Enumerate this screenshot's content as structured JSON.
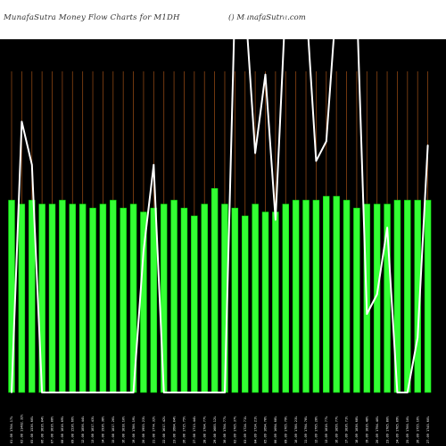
{
  "header": {
    "title": "MunafaSutra  Money Flow  Charts for M1DH",
    "watermark": "() MunafaSutra.com"
  },
  "colors": {
    "background": "#000000",
    "bar": "#33ff33",
    "bar_edge": "#00cc00",
    "line": "#ffffff",
    "gridline": "#8b4513",
    "header_bg": "#ffffff"
  },
  "chart_data": {
    "type": "bar",
    "title": "MunafaSutra  Money Flow  Charts for M1DH",
    "ylim": [
      0,
      100
    ],
    "grid": "vertical",
    "categories": [
      "01.08 1704.17%",
      "02.08 11482.32%",
      "05.08 1536.60%",
      "06.08 1816.04%",
      "07.08 1816.08%",
      "08.08 1816.69%",
      "09.08 1536.66%",
      "12.08 1856.44%",
      "13.08 1817.43%",
      "14.08 1936.38%",
      "15.08 1817.26%",
      "16.08 1818.10%",
      "19.08 1786.19%",
      "20.08 1955.23%",
      "21.08 1774.32%",
      "22.08 1617.42%",
      "23.08 1684.04%",
      "26.08 1715.75%",
      "27.08 1713.44%",
      "28.08 1704.77%",
      "29.08 1685.12%",
      "30.08 1704.77%",
      "02.09 1705.37%",
      "03.09 1724.71%",
      "04.09 1724.21%",
      "05.09 1694.78%",
      "06.09 1694.08%",
      "09.09 1765.79%",
      "10.09 1786.23%",
      "11.09 1794.78%",
      "12.09 1795.28%",
      "13.09 1816.77%",
      "16.09 1856.77%",
      "17.09 1836.71%",
      "18.09 1836.68%",
      "19.09 1816.48%",
      "20.09 1794.40%",
      "23.09 1785.80%",
      "24.09 1785.09%",
      "25.09 1766.10%",
      "26.09 1755.16%",
      "27.09 1745.60%"
    ],
    "series": [
      {
        "type": "bar",
        "values": [
          49,
          48,
          49,
          48,
          48,
          49,
          48,
          48,
          47,
          48,
          49,
          47,
          48,
          46,
          47,
          48,
          49,
          47,
          45,
          48,
          52,
          48,
          47,
          45,
          48,
          46,
          46,
          48,
          49,
          49,
          49,
          50,
          50,
          49,
          47,
          48,
          48,
          48,
          49,
          49,
          49,
          49
        ]
      },
      {
        "type": "line",
        "values": [
          0,
          69,
          58,
          0,
          0,
          0,
          0,
          0,
          0,
          0,
          0,
          0,
          0,
          36,
          58,
          0,
          0,
          0,
          0,
          0,
          0,
          0,
          100,
          100,
          61,
          81,
          44,
          100,
          100,
          100,
          59,
          64,
          100,
          100,
          100,
          20,
          25,
          42,
          0,
          0,
          14,
          63
        ]
      }
    ]
  }
}
